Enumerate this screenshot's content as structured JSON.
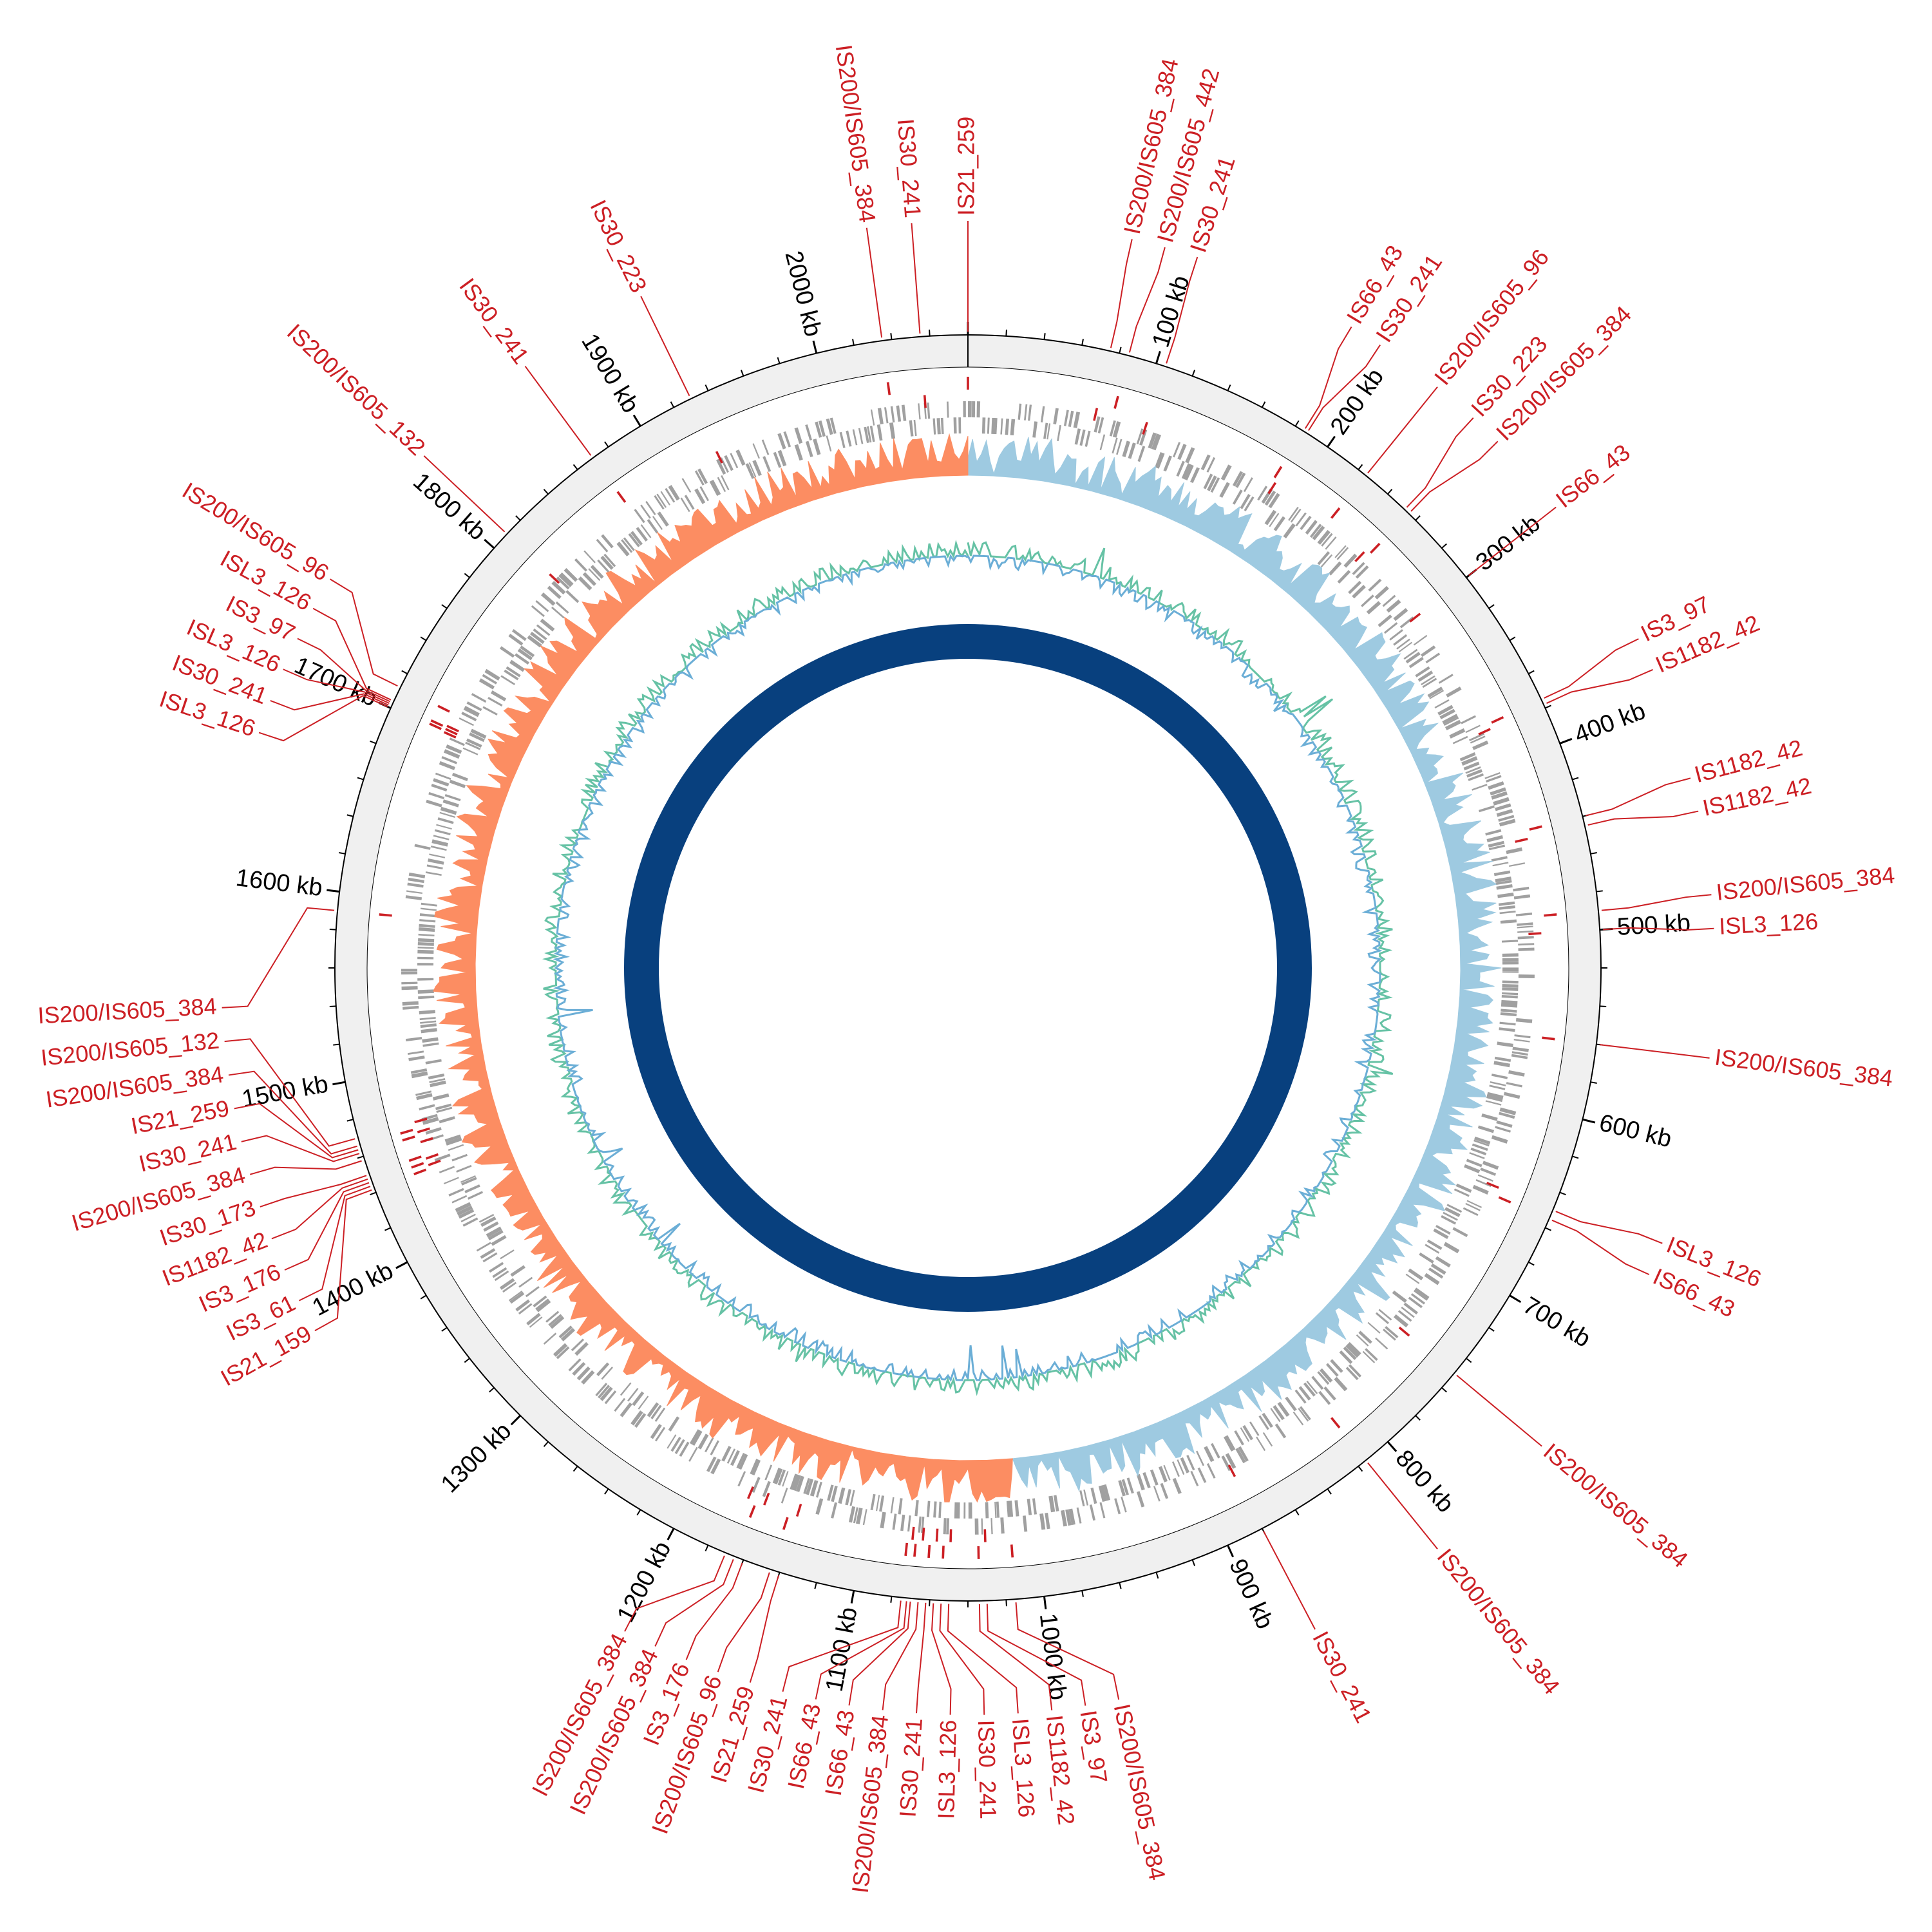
{
  "genome_length_kb": 2080,
  "colors": {
    "ring_bg": "#f0f0f0",
    "genes": "#a0a0a0",
    "is_elements": "#cc1f24",
    "gc_skew_pos": "#9ecae1",
    "gc_skew_neg": "#fc8d62",
    "gc_content_high": "#66c2a5",
    "gc_content_low": "#6baed6",
    "backbone": "#08407e",
    "ticks": "#000000"
  },
  "ticks": [
    {
      "kb": 100,
      "label": "100 kb"
    },
    {
      "kb": 200,
      "label": "200 kb"
    },
    {
      "kb": 300,
      "label": "300 kb"
    },
    {
      "kb": 400,
      "label": "400 kb"
    },
    {
      "kb": 500,
      "label": "500 kb"
    },
    {
      "kb": 600,
      "label": "600 kb"
    },
    {
      "kb": 700,
      "label": "700 kb"
    },
    {
      "kb": 800,
      "label": "800 kb"
    },
    {
      "kb": 900,
      "label": "900 kb"
    },
    {
      "kb": 1000,
      "label": "1000 kb"
    },
    {
      "kb": 1100,
      "label": "1100 kb"
    },
    {
      "kb": 1200,
      "label": "1200 kb"
    },
    {
      "kb": 1300,
      "label": "1300 kb"
    },
    {
      "kb": 1400,
      "label": "1400 kb"
    },
    {
      "kb": 1500,
      "label": "1500 kb"
    },
    {
      "kb": 1600,
      "label": "1600 kb"
    },
    {
      "kb": 1700,
      "label": "1700 kb"
    },
    {
      "kb": 1800,
      "label": "1800 kb"
    },
    {
      "kb": 1900,
      "label": "1900 kb"
    },
    {
      "kb": 2000,
      "label": "2000 kb"
    }
  ],
  "is_elements": [
    {
      "kb": 0,
      "label": "IS21_259"
    },
    {
      "kb": 75,
      "label": "IS200/IS605_384"
    },
    {
      "kb": 85,
      "label": "IS200/IS605_442"
    },
    {
      "kb": 105,
      "label": "IS30_241"
    },
    {
      "kb": 185,
      "label": "IS66_43"
    },
    {
      "kb": 187,
      "label": "IS30_241"
    },
    {
      "kb": 225,
      "label": "IS200/IS605_96"
    },
    {
      "kb": 252,
      "label": "IS30_223"
    },
    {
      "kb": 255,
      "label": "IS200/IS605_384"
    },
    {
      "kb": 300,
      "label": "IS66_43"
    },
    {
      "kb": 375,
      "label": "IS3_97"
    },
    {
      "kb": 378,
      "label": "IS1182_42"
    },
    {
      "kb": 440,
      "label": "IS1182_42"
    },
    {
      "kb": 445,
      "label": "IS1182_42"
    },
    {
      "kb": 490,
      "label": "IS200/IS605_384"
    },
    {
      "kb": 500,
      "label": "ISL3_126"
    },
    {
      "kb": 560,
      "label": "IS200/IS605_384"
    },
    {
      "kb": 650,
      "label": "ISL3_126"
    },
    {
      "kb": 655,
      "label": "IS66_43"
    },
    {
      "kb": 750,
      "label": "IS200/IS605_384"
    },
    {
      "kb": 815,
      "label": "IS200/IS605_384"
    },
    {
      "kb": 880,
      "label": "IS30_241"
    },
    {
      "kb": 1015,
      "label": "IS200/IS605_384"
    },
    {
      "kb": 1030,
      "label": "IS3_97"
    },
    {
      "kb": 1034,
      "label": "IS1182_42"
    },
    {
      "kb": 1050,
      "label": "ISL3_126"
    },
    {
      "kb": 1054,
      "label": "IS30_241"
    },
    {
      "kb": 1058,
      "label": "ISL3_126"
    },
    {
      "kb": 1062,
      "label": "IS30_241"
    },
    {
      "kb": 1066,
      "label": "IS200/IS605_384"
    },
    {
      "kb": 1070,
      "label": "IS66_43"
    },
    {
      "kb": 1072,
      "label": "IS66_43"
    },
    {
      "kb": 1075,
      "label": "IS30_241"
    },
    {
      "kb": 1140,
      "label": "IS21_259"
    },
    {
      "kb": 1145,
      "label": "IS200/IS605_96"
    },
    {
      "kb": 1160,
      "label": "IS3_176"
    },
    {
      "kb": 1165,
      "label": "IS200/IS605_384"
    },
    {
      "kb": 1170,
      "label": "IS200/IS605_384"
    },
    {
      "kb": 1442,
      "label": "IS21_159"
    },
    {
      "kb": 1444,
      "label": "IS3_61"
    },
    {
      "kb": 1446,
      "label": "IS3_176"
    },
    {
      "kb": 1448,
      "label": "IS1182_42"
    },
    {
      "kb": 1450,
      "label": "IS30_173"
    },
    {
      "kb": 1458,
      "label": "IS200/IS605_384"
    },
    {
      "kb": 1462,
      "label": "IS30_241"
    },
    {
      "kb": 1464,
      "label": "IS21_259"
    },
    {
      "kb": 1466,
      "label": "IS200/IS605_384"
    },
    {
      "kb": 1470,
      "label": "IS200/IS605_132"
    },
    {
      "kb": 1590,
      "label": "IS200/IS605_384"
    },
    {
      "kb": 1700,
      "label": "ISL3_126"
    },
    {
      "kb": 1701,
      "label": "IS30_241"
    },
    {
      "kb": 1702,
      "label": "ISL3_126"
    },
    {
      "kb": 1703,
      "label": "IS3_97"
    },
    {
      "kb": 1704,
      "label": "ISL3_126"
    },
    {
      "kb": 1712,
      "label": "IS200/IS605_96"
    },
    {
      "kb": 1810,
      "label": "IS200/IS605_132"
    },
    {
      "kb": 1870,
      "label": "IS30_241"
    },
    {
      "kb": 1930,
      "label": "IS30_223"
    },
    {
      "kb": 2035,
      "label": "IS200/IS605_384"
    },
    {
      "kb": 2055,
      "label": "IS30_241"
    }
  ]
}
